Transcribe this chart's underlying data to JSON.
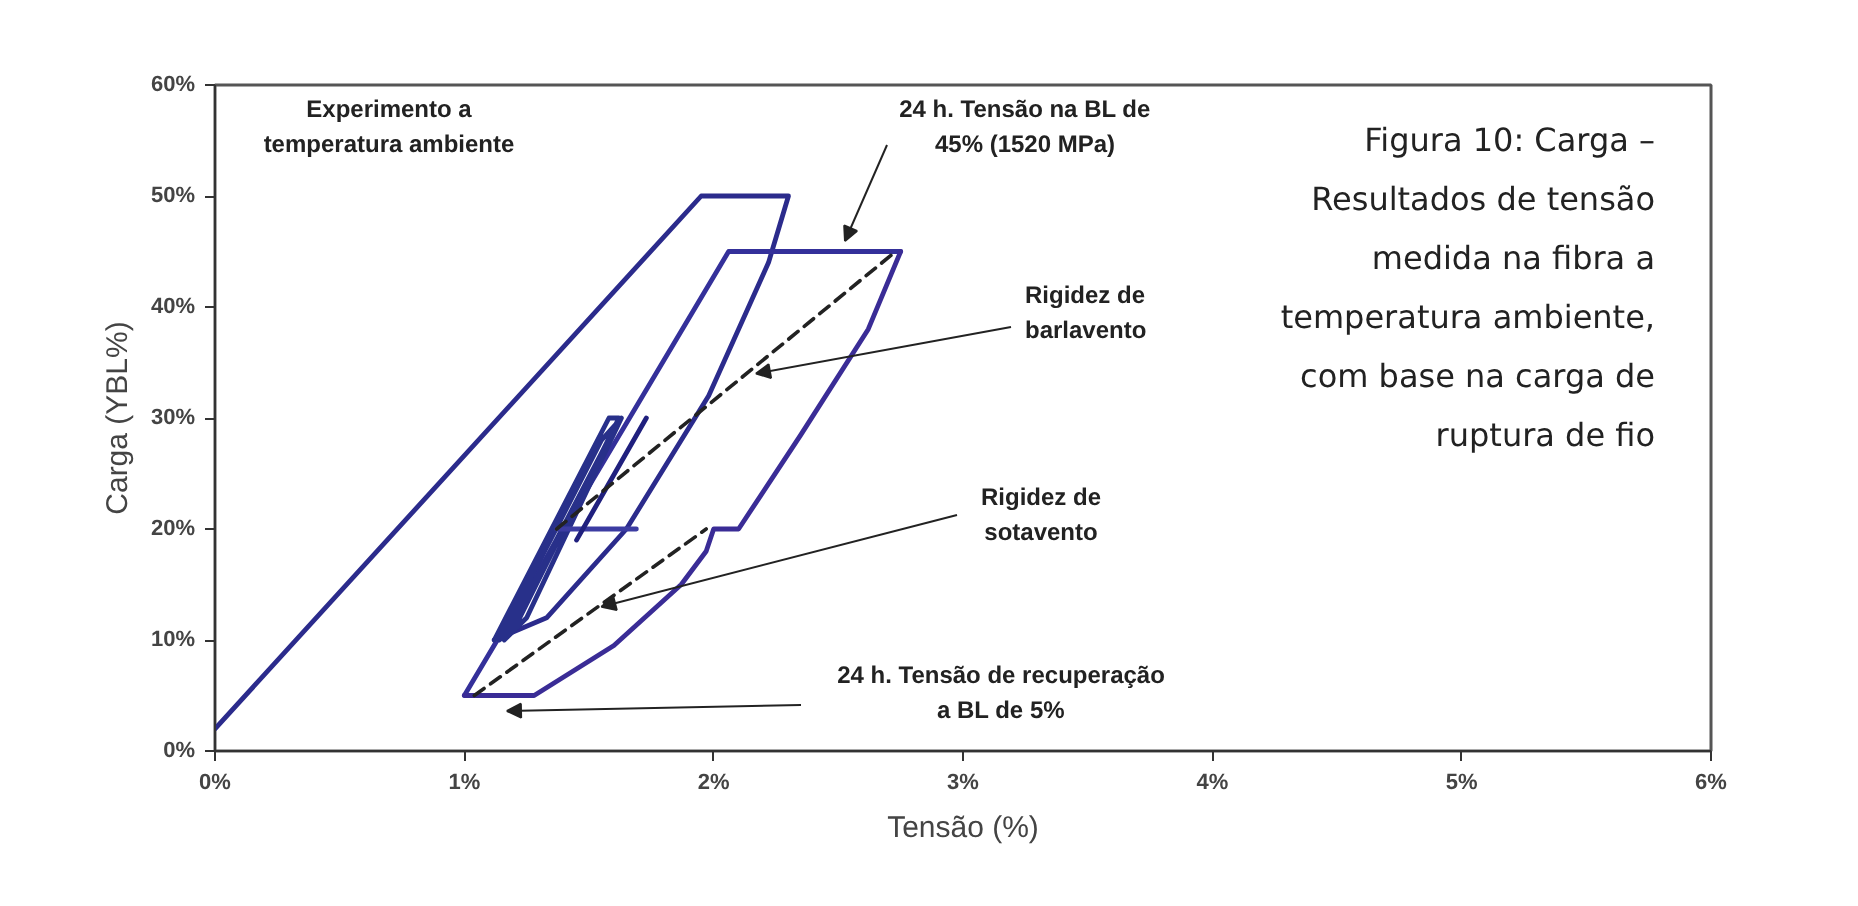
{
  "chart_data": {
    "type": "line",
    "xlabel": "Tensão (%)",
    "ylabel": "Carga (YBL%)",
    "xlim": [
      0,
      6
    ],
    "ylim": [
      0,
      60
    ],
    "xticks": [
      {
        "value": 0,
        "label": "0%"
      },
      {
        "value": 1,
        "label": "1%"
      },
      {
        "value": 2,
        "label": "2%"
      },
      {
        "value": 3,
        "label": "3%"
      },
      {
        "value": 4,
        "label": "4%"
      },
      {
        "value": 5,
        "label": "5%"
      },
      {
        "value": 6,
        "label": "6%"
      }
    ],
    "yticks": [
      {
        "value": 0,
        "label": "0%"
      },
      {
        "value": 10,
        "label": "10%"
      },
      {
        "value": 20,
        "label": "20%"
      },
      {
        "value": 30,
        "label": "30%"
      },
      {
        "value": 40,
        "label": "40%"
      },
      {
        "value": 50,
        "label": "50%"
      },
      {
        "value": 60,
        "label": "60%"
      }
    ],
    "grid": false,
    "marker": "none",
    "line_style": "solid",
    "series": [
      {
        "color": "#2b2b8c",
        "x": [
          0,
          1.95,
          2.3,
          2.22,
          1.98,
          1.65,
          1.33,
          1.12
        ],
        "values": [
          2,
          50,
          50,
          44,
          32,
          20,
          12,
          10
        ]
      },
      {
        "color": "#34309a",
        "x": [
          1.0,
          2.06,
          2.75
        ],
        "values": [
          5,
          45,
          45
        ]
      },
      {
        "color": "#3a2c96",
        "x": [
          2.75,
          2.62,
          2.35,
          2.1,
          2.0,
          1.97,
          1.87,
          1.6,
          1.28,
          1.0
        ],
        "values": [
          45,
          38,
          28.5,
          20,
          20,
          18,
          15,
          9.5,
          5,
          5
        ]
      },
      {
        "color": "#28308a",
        "x": [
          1.12,
          1.58,
          1.62,
          1.2,
          1.14,
          1.55,
          1.63,
          1.25,
          1.16,
          1.6
        ],
        "values": [
          10,
          30,
          30,
          11,
          10,
          28,
          30,
          12,
          10,
          29
        ]
      },
      {
        "color": "#3c3ca2",
        "x": [
          1.37,
          1.69
        ],
        "values": [
          20,
          20
        ]
      },
      {
        "color": "#20207e",
        "x": [
          1.45,
          1.73
        ],
        "values": [
          19,
          30
        ]
      },
      {
        "color": "#222222",
        "line_style": "dashed",
        "x": [
          1.37,
          2.73
        ],
        "values": [
          20,
          45
        ]
      },
      {
        "color": "#222222",
        "line_style": "dashed",
        "x": [
          1.04,
          1.97
        ],
        "values": [
          5,
          20
        ]
      }
    ],
    "annotations": [
      "Experimento a temperatura ambiente",
      "24 h. Tensão na BL de 45% (1520 MPa)",
      {
        "text": "Rigidez de barlavento",
        "x": 2.17,
        "y": 34
      },
      {
        "text": "Rigidez de sotavento",
        "x": 1.55,
        "y": 13
      },
      "24 h. Tensão de recuperação a BL de 5%",
      "Figura 10: Carga – Resultados de tensão medida na fibra a temperatura ambiente, com base na carga de ruptura de fio"
    ]
  }
}
